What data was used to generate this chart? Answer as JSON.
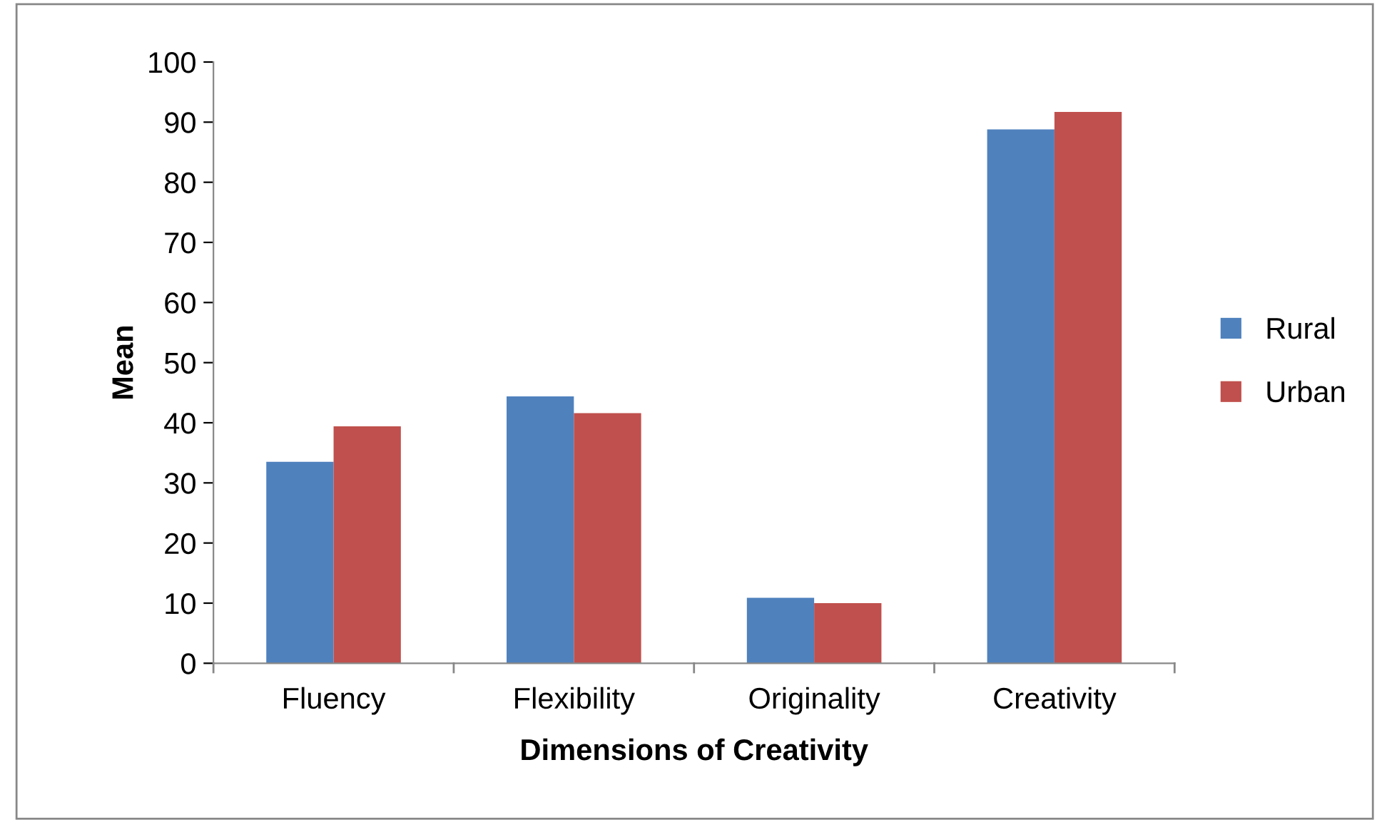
{
  "chart_data": {
    "type": "bar",
    "xlabel": "Dimensions of Creativity",
    "ylabel": "Mean",
    "categories": [
      "Fluency",
      "Flexibility",
      "Originality",
      "Creativity"
    ],
    "series": [
      {
        "name": "Rural",
        "color": "#4f81bd",
        "values": [
          33.5,
          44.4,
          10.9,
          88.8
        ]
      },
      {
        "name": "Urban",
        "color": "#c0504d",
        "values": [
          39.4,
          41.6,
          10.0,
          91.7
        ]
      }
    ],
    "ylim": [
      0,
      100
    ],
    "yticks": [
      0,
      10,
      20,
      30,
      40,
      50,
      60,
      70,
      80,
      90,
      100
    ],
    "grid": false,
    "legend": "right"
  }
}
